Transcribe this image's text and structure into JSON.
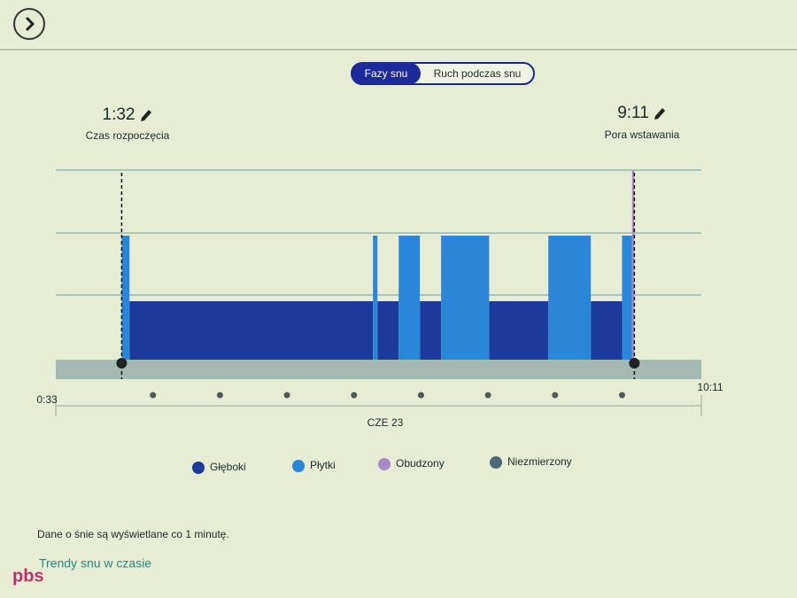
{
  "tabs": [
    "Fazy snu",
    "Ruch podczas snu"
  ],
  "start": {
    "time": {
      "value": 92,
      "label": "1:32"
    },
    "caption": "Czas rozpoczęcia"
  },
  "end": {
    "time": {
      "value": 551,
      "label": "9:11"
    },
    "caption": "Pora wstawania"
  },
  "chart_data": {
    "type": "sleep-stages",
    "xlim": [
      33,
      611
    ],
    "xticks": [
      {
        "value": 33,
        "label": "0:33"
      },
      {
        "value": 611,
        "label": "10:11"
      }
    ],
    "minor_ticks": [
      120,
      180,
      240,
      300,
      360,
      420,
      480,
      540
    ],
    "date_label": "CZE 23",
    "series": [
      {
        "name": "Głęboki",
        "color": "#1c3a9e",
        "segments": [
          [
            99,
            317
          ],
          [
            321,
            340
          ],
          [
            359,
            378
          ],
          [
            421,
            474
          ],
          [
            512,
            540
          ]
        ]
      },
      {
        "name": "Płytki",
        "color": "#2a86d8",
        "segments": [
          [
            92,
            99
          ],
          [
            317,
            321
          ],
          [
            340,
            359
          ],
          [
            378,
            421
          ],
          [
            474,
            512
          ],
          [
            540,
            549
          ]
        ]
      },
      {
        "name": "Obudzony",
        "color": "#a98ac8",
        "segments": [
          [
            549,
            551
          ]
        ]
      },
      {
        "name": "Niezmierzony",
        "color": "#4d6a78",
        "segments": []
      }
    ]
  },
  "footer": {
    "note": "Dane o śnie są wyświetlane co 1 minutę.",
    "link": "Trendy snu w czasie"
  },
  "watermark": "pbs"
}
